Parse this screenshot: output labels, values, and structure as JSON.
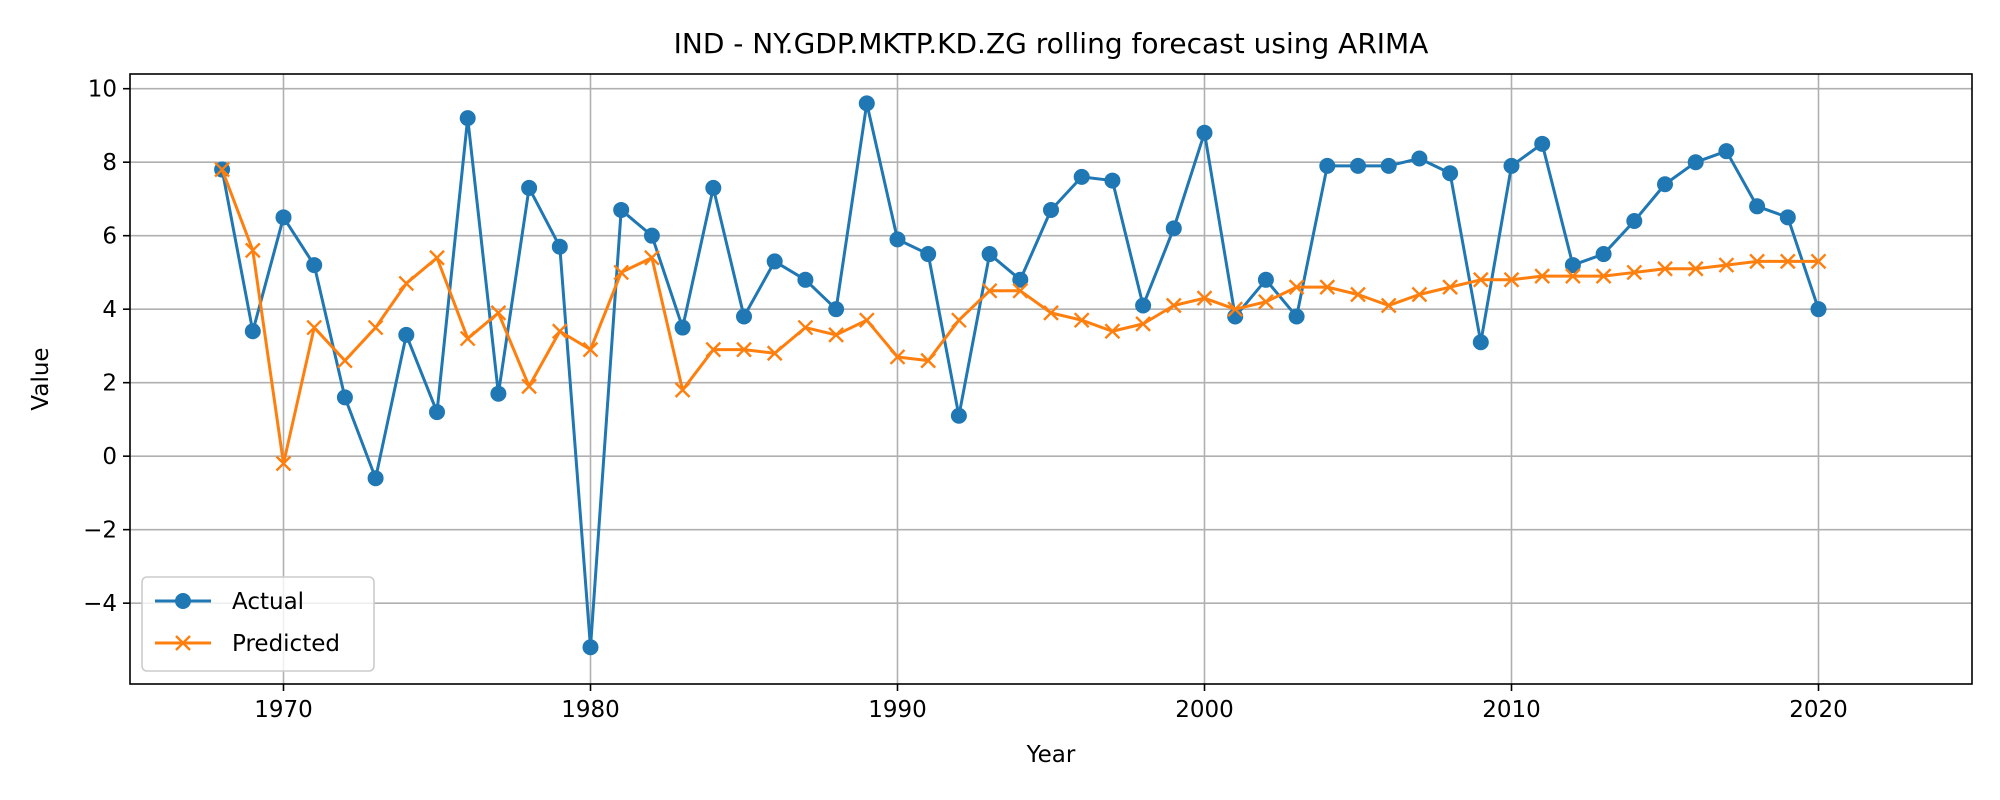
{
  "chart_data": {
    "type": "line",
    "title": "IND - NY.GDP.MKTP.KD.ZG rolling forecast using ARIMA",
    "xlabel": "Year",
    "ylabel": "Value",
    "xlim": [
      1965,
      2025
    ],
    "ylim": [
      -6.2,
      10.4
    ],
    "x_ticks": [
      1970,
      1980,
      1990,
      2000,
      2010,
      2020
    ],
    "y_ticks": [
      -4,
      -2,
      0,
      2,
      4,
      6,
      8,
      10
    ],
    "y_tick_labels": [
      "−4",
      "−2",
      "0",
      "2",
      "4",
      "6",
      "8",
      "10"
    ],
    "grid": true,
    "legend_position": "lower-left",
    "x": [
      1968,
      1969,
      1970,
      1971,
      1972,
      1973,
      1974,
      1975,
      1976,
      1977,
      1978,
      1979,
      1980,
      1981,
      1982,
      1983,
      1984,
      1985,
      1986,
      1987,
      1988,
      1989,
      1990,
      1991,
      1992,
      1993,
      1994,
      1995,
      1996,
      1997,
      1998,
      1999,
      2000,
      2001,
      2002,
      2003,
      2004,
      2005,
      2006,
      2007,
      2008,
      2009,
      2010,
      2011,
      2012,
      2013,
      2014,
      2015,
      2016,
      2017,
      2018,
      2019,
      2020
    ],
    "series": [
      {
        "name": "Actual",
        "color": "#1f77b4",
        "marker": "circle",
        "values": [
          7.8,
          3.4,
          6.5,
          5.2,
          1.6,
          -0.6,
          3.3,
          1.2,
          9.2,
          1.7,
          7.3,
          5.7,
          -5.2,
          6.7,
          6.0,
          3.5,
          7.3,
          3.8,
          5.3,
          4.8,
          4.0,
          9.6,
          5.9,
          5.5,
          1.1,
          5.5,
          4.8,
          6.7,
          7.6,
          7.5,
          4.1,
          6.2,
          8.8,
          3.8,
          4.8,
          3.8,
          7.9,
          7.9,
          7.9,
          8.1,
          7.7,
          3.1,
          7.9,
          8.5,
          5.2,
          5.5,
          6.4,
          7.4,
          8.0,
          8.3,
          6.8,
          6.5,
          4.0
        ]
      },
      {
        "name": "Predicted",
        "color": "#ff7f0e",
        "marker": "x",
        "values": [
          7.8,
          5.6,
          -0.2,
          3.5,
          2.6,
          3.5,
          4.7,
          5.4,
          3.2,
          3.9,
          1.9,
          3.4,
          2.9,
          5.0,
          5.4,
          1.8,
          2.9,
          2.9,
          2.8,
          3.5,
          3.3,
          3.7,
          2.7,
          2.6,
          3.7,
          4.5,
          4.5,
          3.9,
          3.7,
          3.4,
          3.6,
          4.1,
          4.3,
          4.0,
          4.2,
          4.6,
          4.6,
          4.4,
          4.1,
          4.4,
          4.6,
          4.8,
          4.8,
          4.9,
          4.9,
          4.9,
          5.0,
          5.1,
          5.1,
          5.2,
          5.3,
          5.3,
          5.3
        ]
      }
    ]
  }
}
